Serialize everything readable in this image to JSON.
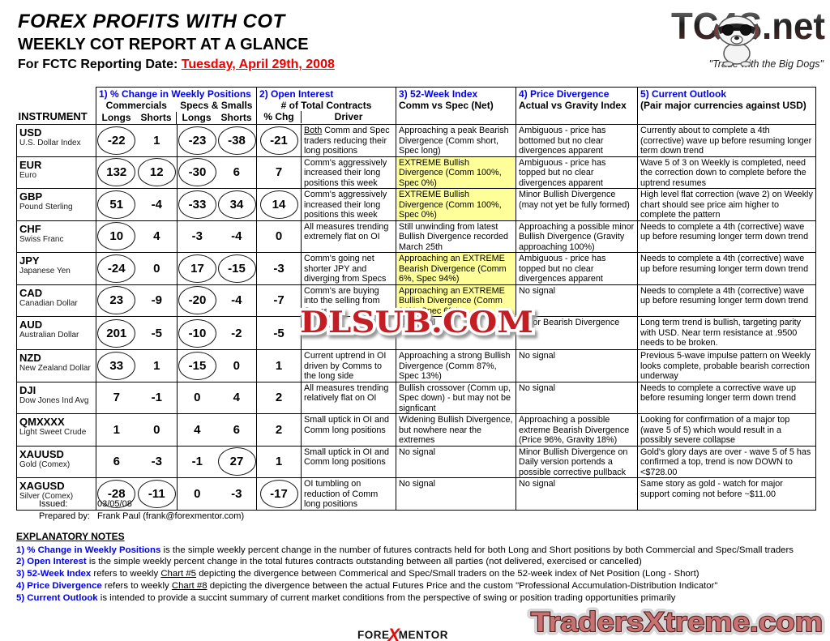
{
  "header": {
    "title": "FOREX PROFITS WITH COT",
    "subtitle": "WEEKLY COT REPORT AT A GLANCE",
    "report_date_label": "For FCTC Reporting Date: ",
    "report_date": "Tuesday, April 29th, 2008",
    "logo_text": "TC4S.net",
    "logo_tagline": "\"Trade with the Big Dogs\""
  },
  "colors": {
    "accent_blue": "#0000ee",
    "highlight_yellow": "#ffff99",
    "date_red": "#ee0000",
    "watermark_red": "#c41e24",
    "tradersxtreme_fill": "#c87171"
  },
  "table": {
    "col_headers": {
      "instrument": "INSTRUMENT",
      "c1": "1) % Change in Weekly Positions",
      "c1_sub1": "Commercials",
      "c1_sub2": "Specs & Smalls",
      "longs1": "Longs",
      "shorts1": "Shorts",
      "longs2": "Longs",
      "shorts2": "Shorts",
      "c2": "2) Open Interest",
      "c2_sub": "# of Total Contracts",
      "pct_chg": "% Chg",
      "driver": "Driver",
      "c3": "3) 52-Week Index",
      "c3_sub": "Comm vs Spec (Net)",
      "c4": "4) Price Divergence",
      "c4_sub": "Actual vs Gravity Index",
      "c5": "5) Current Outlook",
      "c5_sub": "(Pair major currencies against USD)"
    },
    "rows": [
      {
        "code": "USD",
        "name": "U.S. Dollar Index",
        "values": [
          {
            "v": "-22",
            "c": true
          },
          {
            "v": "1",
            "c": false
          },
          {
            "v": "-23",
            "c": true
          },
          {
            "v": "-38",
            "c": true
          },
          {
            "v": "-21",
            "c": true
          }
        ],
        "driver_u": "Both",
        "driver": "Comm and Spec traders reducing their long positions",
        "wk52": "Approaching a peak Bearish Divergence (Comm short, Spec long)",
        "wk52_hl": false,
        "price_div": "Ambiguous - price has bottomed but no clear divergences apparent",
        "outlook": "Currently about to complete a 4th (corrective) wave up before resuming longer term down trend"
      },
      {
        "code": "EUR",
        "name": "Euro",
        "values": [
          {
            "v": "132",
            "c": true
          },
          {
            "v": "12",
            "c": true
          },
          {
            "v": "-30",
            "c": true
          },
          {
            "v": "6",
            "c": false
          },
          {
            "v": "7",
            "c": false
          }
        ],
        "driver": "Comm's aggressively increased their long positions this week",
        "wk52": "EXTREME Bullish Divergence (Comm 100%, Spec 0%)",
        "wk52_hl": true,
        "price_div": "Ambiguous - price has topped but no clear divergences apparent",
        "outlook": "Wave 5 of 3 on Weekly is completed, need the correction down to complete before the uptrend resumes"
      },
      {
        "code": "GBP",
        "name": "Pound Sterling",
        "values": [
          {
            "v": "51",
            "c": true
          },
          {
            "v": "-4",
            "c": false
          },
          {
            "v": "-33",
            "c": true
          },
          {
            "v": "34",
            "c": true
          },
          {
            "v": "14",
            "c": true
          }
        ],
        "driver": "Comm's aggressively increased their long positions this week",
        "wk52": "EXTREME Bullish Divergence (Comm 100%, Spec 0%)",
        "wk52_hl": true,
        "price_div": "Minor Bullish Divergence (may not yet be fully formed)",
        "outlook": "High level flat correction (wave 2) on Weekly chart should see price aim higher to complete the pattern"
      },
      {
        "code": "CHF",
        "name": "Swiss Franc",
        "values": [
          {
            "v": "10",
            "c": true
          },
          {
            "v": "4",
            "c": false
          },
          {
            "v": "-3",
            "c": false
          },
          {
            "v": "-4",
            "c": false
          },
          {
            "v": "0",
            "c": false
          }
        ],
        "driver": "All measures trending extremely flat on OI",
        "wk52": "Still unwinding from latest Bullish Divergence recorded March 25th",
        "wk52_hl": false,
        "price_div": "Approaching a possible minor Bullish Divergence (Gravity approaching 100%)",
        "outlook": "Needs to complete a 4th (corrective) wave up before resuming longer term down trend"
      },
      {
        "code": "JPY",
        "name": "Japanese Yen",
        "values": [
          {
            "v": "-24",
            "c": true
          },
          {
            "v": "0",
            "c": false
          },
          {
            "v": "17",
            "c": true
          },
          {
            "v": "-15",
            "c": true
          },
          {
            "v": "-3",
            "c": false
          }
        ],
        "driver": "Comm's going net shorter JPY and diverging from Specs",
        "wk52": "Approaching an EXTREME Bearish Divergence (Comm 6%, Spec 94%)",
        "wk52_hl": true,
        "price_div": "Ambiguous - price has topped but no clear divergences apparent",
        "outlook": "Needs to complete a 4th (corrective) wave up before resuming longer term down trend"
      },
      {
        "code": "CAD",
        "name": "Canadian Dollar",
        "values": [
          {
            "v": "23",
            "c": true
          },
          {
            "v": "-9",
            "c": false
          },
          {
            "v": "-20",
            "c": true
          },
          {
            "v": "-4",
            "c": false
          },
          {
            "v": "-7",
            "c": false
          }
        ],
        "driver": "Comm's are buying into the selling from Specs",
        "wk52": "Approaching an EXTREME Bullish Divergence (Comm 94%, Spec 6%)",
        "wk52_hl": true,
        "price_div": "No signal",
        "outlook": "Needs to complete a 4th (corrective) wave up before resuming longer term down trend"
      },
      {
        "code": "AUD",
        "name": "Australian Dollar",
        "tall": true,
        "values": [
          {
            "v": "201",
            "c": true
          },
          {
            "v": "-5",
            "c": false
          },
          {
            "v": "-10",
            "c": true
          },
          {
            "v": "-2",
            "c": false
          },
          {
            "v": "-5",
            "c": false
          }
        ],
        "driver": "C\nt",
        "wk52": "No signal",
        "wk52_hl": false,
        "price_div": "Minor Bearish Divergence",
        "outlook": "Long term trend is bullish, targeting parity with USD. Near term resistance at .9500 needs to be broken."
      },
      {
        "code": "NZD",
        "name": "New Zealand Dollar",
        "values": [
          {
            "v": "33",
            "c": true
          },
          {
            "v": "1",
            "c": false
          },
          {
            "v": "-15",
            "c": true
          },
          {
            "v": "0",
            "c": false
          },
          {
            "v": "1",
            "c": false
          }
        ],
        "driver": "Current uptrend in OI driven by Comms to the long side",
        "wk52": "Approaching a strong Bullish Divergence (Comm 87%, Spec 13%)",
        "wk52_hl": false,
        "price_div": "No signal",
        "outlook": "Previous 5-wave impulse pattern on Weekly looks complete, probable bearish correction underway"
      },
      {
        "code": "DJI",
        "name": "Dow Jones Ind Avg",
        "values": [
          {
            "v": "7",
            "c": false
          },
          {
            "v": "-1",
            "c": false
          },
          {
            "v": "0",
            "c": false
          },
          {
            "v": "4",
            "c": false
          },
          {
            "v": "2",
            "c": false
          }
        ],
        "driver": "All measures trending relatively flat on OI",
        "wk52": "Bullish crossover (Comm up, Spec down) - but may not be signficant",
        "wk52_hl": false,
        "price_div": "No signal",
        "outlook": "Needs to complete a corrective wave up before resuming longer term down trend"
      },
      {
        "code": "QMXXXX",
        "name": "Light Sweet Crude",
        "values": [
          {
            "v": "1",
            "c": false
          },
          {
            "v": "0",
            "c": false
          },
          {
            "v": "4",
            "c": false
          },
          {
            "v": "6",
            "c": false
          },
          {
            "v": "2",
            "c": false
          }
        ],
        "driver": "Small uptick in OI and Comm long positions",
        "wk52": "Widening Bullish Divergence, but nowhere near the extremes",
        "wk52_hl": false,
        "price_div": "Approaching a possible extreme Bearish Divergence (Price 96%, Gravity 18%)",
        "outlook": "Looking for confirmation of a major top (wave 5 of 5) which would result in a possibly severe collapse"
      },
      {
        "code": "XAUUSD",
        "name": "Gold (Comex)",
        "values": [
          {
            "v": "6",
            "c": false
          },
          {
            "v": "-3",
            "c": false
          },
          {
            "v": "-1",
            "c": false
          },
          {
            "v": "27",
            "c": true
          },
          {
            "v": "1",
            "c": false
          }
        ],
        "driver": "Small uptick in OI and Comm long positions",
        "wk52": "No signal",
        "wk52_hl": false,
        "price_div": "Minor Bullish Divergence on Daily version portends a possible corrective pullback",
        "outlook": "Gold's glory days are over - wave 5 of 5 has confirmed a top, trend is now DOWN to <$728.00"
      },
      {
        "code": "XAGUSD",
        "name": "Silver (Comex)",
        "values": [
          {
            "v": "-28",
            "c": true
          },
          {
            "v": "-11",
            "c": true
          },
          {
            "v": "0",
            "c": false
          },
          {
            "v": "-3",
            "c": false
          },
          {
            "v": "-17",
            "c": true
          }
        ],
        "driver": "OI tumbling on reduction of Comm long positions",
        "wk52": "No signal",
        "wk52_hl": false,
        "price_div": "No signal",
        "outlook": "Same story as gold - watch for major support coming not before ~$11.00"
      }
    ]
  },
  "watermark": "DLSUB.COM",
  "meta": {
    "issued_label": "Issued:",
    "issued": "03/05/08",
    "prepared_label": "Prepared by:",
    "prepared": "Frank Paul (frank@forexmentor.com)"
  },
  "notes": {
    "heading": "EXPLANATORY NOTES",
    "items": [
      {
        "label": "1) % Change in Weekly Positions",
        "t1": "is the simple weekly percent change in the number of futures contracts held for both Long and Short positions by both Commercial and Spec/Small traders"
      },
      {
        "label": "2) Open Interest",
        "t1": "is the simple weekly percent change in the total futures contracts outstanding between all parties (not delivered, exercised or cancelled)"
      },
      {
        "label": "3) 52-Week Index",
        "t1": "refers to weekly ",
        "u": "Chart #5",
        "t2": " depicting the divergence between Commerical and Spec/Small traders on the 52-week index of Net Position (Long - Short)"
      },
      {
        "label": "4) Price Divergence",
        "t1": "refers to weekly ",
        "u": "Chart #8",
        "t2": " depicting the divergence between the actual Futures Price and the custom \"Professional Accumulation-Distribution Indicator\""
      },
      {
        "label": "5) Current Outlook",
        "t1": "is intended to provide a succint summary of current market conditions from the perspective of swing or position trading opportunities primarily"
      }
    ]
  },
  "footer": {
    "forexmentor_pre": "FORE",
    "forexmentor_x": "X",
    "forexmentor_post": "MENTOR",
    "tradersxtreme": "TradersXtreme.com"
  }
}
